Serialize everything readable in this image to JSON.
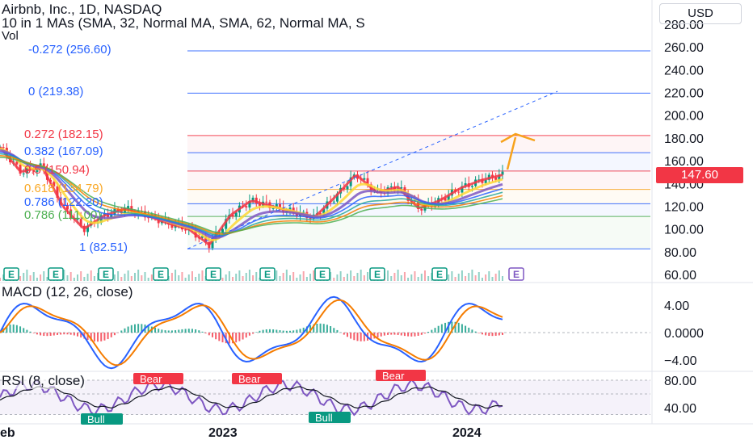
{
  "header": {
    "symbol_line": "Airbnb, Inc., 1D, NASDAQ",
    "ma_line": "10 in 1 MAs (SMA, 32, Normal MA, SMA, 62, Normal MA, S",
    "vol_label": "Vol"
  },
  "currency_label": "USD",
  "last_price": "147.60",
  "colors": {
    "up": "#089981",
    "down": "#f23645",
    "accent": "#2962ff",
    "rsi": "#7e57c2"
  },
  "price_axis_ticks": [
    "280.00",
    "260.00",
    "240.00",
    "220.00",
    "200.00",
    "180.00",
    "160.00",
    "140.00",
    "120.00",
    "100.00",
    "80.00",
    "60.00"
  ],
  "fib_levels": [
    {
      "label": "-0.272 (256.60)",
      "value": 256.6,
      "color": "#2962ff"
    },
    {
      "label": "0 (219.38)",
      "value": 219.38,
      "color": "#2962ff"
    },
    {
      "label": "0.272 (182.15)",
      "value": 182.15,
      "color": "#f23645"
    },
    {
      "label": "0.382 (167.09)",
      "value": 167.09,
      "color": "#2962ff"
    },
    {
      "label": "0.5 (150.94)",
      "value": 150.94,
      "color": "#f23645"
    },
    {
      "label": "0.618 (134.79)",
      "value": 134.79,
      "color": "#f9a825"
    },
    {
      "label": "0.786 (122.20)",
      "value": 122.2,
      "color": "#2962ff"
    },
    {
      "label": "0.786 (111.00)",
      "value": 111.0,
      "color": "#4caf50"
    },
    {
      "label": "1 (82.51)",
      "value": 82.51,
      "color": "#2962ff"
    }
  ],
  "earnings_marker": "E",
  "x_axis_labels": [
    "eb",
    "2023",
    "2024"
  ],
  "macd": {
    "title": "MACD (12, 26, close)",
    "ticks": [
      "4.00",
      "0.0000",
      "−4.00"
    ]
  },
  "rsi": {
    "title": "RSI (8, close)",
    "ticks": [
      "80.00",
      "40.00"
    ],
    "bear_label": "Bear",
    "bull_label": "Bull"
  },
  "chart_data": {
    "type": "line",
    "title": "Airbnb, Inc., 1D, NASDAQ",
    "price_series": [
      {
        "x": "2022-02",
        "close": 172
      },
      {
        "x": "2022-03",
        "close": 150
      },
      {
        "x": "2022-04",
        "close": 155
      },
      {
        "x": "2022-05",
        "close": 120
      },
      {
        "x": "2022-06",
        "close": 100
      },
      {
        "x": "2022-07",
        "close": 112
      },
      {
        "x": "2022-08",
        "close": 118
      },
      {
        "x": "2022-09",
        "close": 112
      },
      {
        "x": "2022-10",
        "close": 105
      },
      {
        "x": "2022-11",
        "close": 100
      },
      {
        "x": "2022-12",
        "close": 86
      },
      {
        "x": "2023-01",
        "close": 112
      },
      {
        "x": "2023-02",
        "close": 125
      },
      {
        "x": "2023-03",
        "close": 120
      },
      {
        "x": "2023-04",
        "close": 115
      },
      {
        "x": "2023-05",
        "close": 110
      },
      {
        "x": "2023-06",
        "close": 128
      },
      {
        "x": "2023-07",
        "close": 148
      },
      {
        "x": "2023-08",
        "close": 132
      },
      {
        "x": "2023-09",
        "close": 137
      },
      {
        "x": "2023-10",
        "close": 118
      },
      {
        "x": "2023-11",
        "close": 125
      },
      {
        "x": "2023-12",
        "close": 136
      },
      {
        "x": "2024-01",
        "close": 143
      },
      {
        "x": "2024-02",
        "close": 147.6
      }
    ],
    "ylim": [
      60,
      280
    ]
  }
}
